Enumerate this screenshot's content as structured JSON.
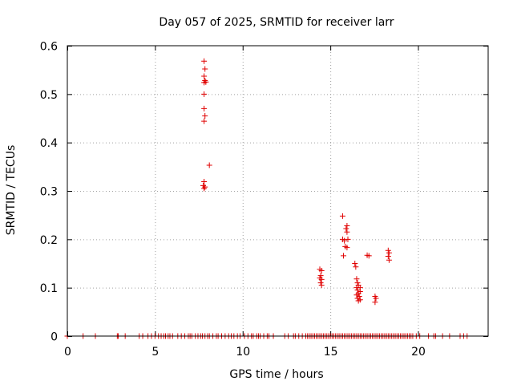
{
  "chart_data": {
    "type": "scatter",
    "title": "Day 057 of 2025, SRMTID for receiver larr",
    "xlabel": "GPS time / hours",
    "ylabel": "SRMTID / TECUs",
    "xlim": [
      0,
      24
    ],
    "ylim": [
      0,
      0.6
    ],
    "xticks": [
      0,
      5,
      10,
      15,
      20
    ],
    "yticks": [
      0,
      0.1,
      0.2,
      0.3,
      0.4,
      0.5,
      0.6
    ],
    "xtick_labels": [
      "0",
      "5",
      "10",
      "15",
      "20"
    ],
    "ytick_labels": [
      "0",
      "0.1",
      "0.2",
      "0.3",
      "0.4",
      "0.5",
      "0.6"
    ],
    "grid": true,
    "marker": "+",
    "color": "#e00000",
    "series": [
      {
        "name": "SRMTID",
        "points": [
          [
            7.8,
            0.568
          ],
          [
            7.85,
            0.552
          ],
          [
            7.8,
            0.537
          ],
          [
            7.85,
            0.528
          ],
          [
            7.8,
            0.524
          ],
          [
            7.9,
            0.525
          ],
          [
            7.8,
            0.5
          ],
          [
            7.8,
            0.47
          ],
          [
            7.85,
            0.455
          ],
          [
            7.8,
            0.444
          ],
          [
            8.1,
            0.353
          ],
          [
            7.8,
            0.319
          ],
          [
            7.75,
            0.311
          ],
          [
            7.85,
            0.308
          ],
          [
            7.8,
            0.305
          ],
          [
            14.4,
            0.138
          ],
          [
            14.5,
            0.135
          ],
          [
            14.45,
            0.125
          ],
          [
            14.4,
            0.12
          ],
          [
            14.5,
            0.117
          ],
          [
            14.45,
            0.11
          ],
          [
            14.5,
            0.105
          ],
          [
            15.7,
            0.248
          ],
          [
            15.95,
            0.228
          ],
          [
            15.9,
            0.222
          ],
          [
            15.95,
            0.215
          ],
          [
            15.7,
            0.2
          ],
          [
            15.8,
            0.197
          ],
          [
            16.0,
            0.2
          ],
          [
            15.85,
            0.185
          ],
          [
            15.95,
            0.183
          ],
          [
            15.75,
            0.166
          ],
          [
            16.4,
            0.15
          ],
          [
            16.45,
            0.143
          ],
          [
            16.5,
            0.118
          ],
          [
            16.55,
            0.11
          ],
          [
            16.6,
            0.105
          ],
          [
            16.5,
            0.1
          ],
          [
            16.7,
            0.1
          ],
          [
            16.55,
            0.095
          ],
          [
            16.7,
            0.092
          ],
          [
            16.6,
            0.088
          ],
          [
            16.5,
            0.085
          ],
          [
            16.65,
            0.082
          ],
          [
            16.55,
            0.078
          ],
          [
            16.7,
            0.075
          ],
          [
            16.6,
            0.073
          ],
          [
            17.2,
            0.166
          ],
          [
            17.1,
            0.167
          ],
          [
            17.55,
            0.082
          ],
          [
            17.6,
            0.078
          ],
          [
            17.55,
            0.07
          ],
          [
            18.3,
            0.177
          ],
          [
            18.35,
            0.172
          ],
          [
            18.3,
            0.165
          ],
          [
            18.35,
            0.157
          ]
        ],
        "zero_points_x": [
          0.0,
          0.9,
          1.6,
          2.85,
          2.9,
          3.3,
          4.1,
          4.3,
          4.6,
          4.8,
          5.0,
          5.2,
          5.35,
          5.5,
          5.6,
          5.75,
          5.85,
          6.0,
          6.3,
          6.5,
          6.7,
          6.9,
          7.0,
          7.1,
          7.3,
          7.45,
          7.6,
          7.7,
          7.85,
          8.0,
          8.1,
          8.3,
          8.5,
          8.6,
          8.8,
          9.0,
          9.2,
          9.35,
          9.5,
          9.7,
          9.85,
          10.1,
          10.3,
          10.5,
          10.6,
          10.8,
          10.9,
          11.0,
          11.2,
          11.4,
          11.5,
          11.75,
          12.4,
          12.6,
          12.9,
          13.0,
          13.2,
          13.4,
          13.6,
          13.7,
          13.8,
          13.9,
          14.0,
          14.1,
          14.2,
          14.3,
          14.4,
          14.5,
          14.6,
          14.7,
          14.8,
          14.9,
          15.0,
          15.1,
          15.2,
          15.3,
          15.4,
          15.5,
          15.6,
          15.7,
          15.8,
          15.9,
          16.0,
          16.1,
          16.2,
          16.3,
          16.4,
          16.5,
          16.6,
          16.7,
          16.8,
          16.9,
          17.0,
          17.1,
          17.2,
          17.3,
          17.4,
          17.5,
          17.6,
          17.7,
          17.8,
          17.9,
          18.0,
          18.1,
          18.2,
          18.3,
          18.4,
          18.5,
          18.6,
          18.7,
          18.8,
          18.9,
          19.0,
          19.1,
          19.2,
          19.3,
          19.4,
          19.5,
          19.6,
          19.7,
          19.9,
          20.1,
          20.6,
          20.9,
          21.0,
          21.4,
          21.8,
          22.4,
          22.6,
          22.8
        ]
      }
    ]
  }
}
